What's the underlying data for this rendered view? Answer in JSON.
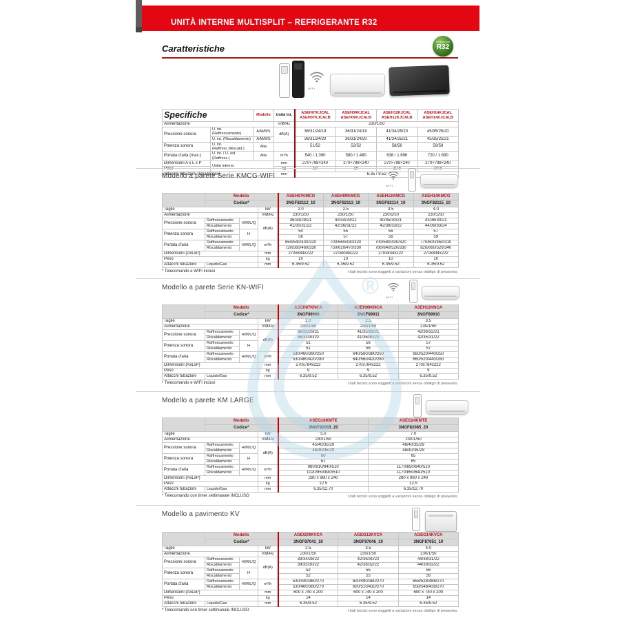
{
  "page": {
    "banner_title": "UNITÀ INTERNE MULTISPLIT – REFRIGERANTE R32",
    "section_heading": "Caratteristiche",
    "r32_badge": {
      "small": "refrigerante",
      "big": "R32"
    },
    "wifi_label": "WIFI",
    "watermark_symbol": "®",
    "colors": {
      "banner_red": "#e30613",
      "model_red": "#b5121b",
      "header_gray": "#d9d9d9",
      "watermark_blue": "#b5d5e8",
      "badge_green": "#2e6b1b"
    }
  },
  "labels": {
    "modello": "Modello",
    "codice": "Codice*",
    "taglie": "Taglie",
    "alimentazione": "Alimentazione",
    "pressione": "Pressione sonora",
    "potenza": "Potenza sonora",
    "portata": "Portata d'aria",
    "dimensioni": "Dimensioni (AxLxP)",
    "peso": "Peso",
    "attacchi": "Attacchi tubazioni",
    "raffrescamento": "Raffrescamento",
    "riscaldamento": "Riscaldamento",
    "liquido_gas": "Liquido/Gas",
    "hmlq": "H/M/L/Q",
    "h": "H",
    "kw": "kW",
    "vhz": "V/Ø/Hz",
    "dba": "dB(A)",
    "m3h": "m³/h",
    "mm": "mm",
    "kg": "kg"
  },
  "spec_table": {
    "title": "Specifiche",
    "modello_label": "Modello",
    "unita_label": "Unità Int.",
    "models": [
      "ASEH07KJCAL\nASEH07KJCALB",
      "ASEH09KJCAL\nASEH09KJCALB",
      "ASEH12KJCAL\nASEH12KJCALB",
      "ASEH14KJCAL\nASEH14KJCALB"
    ],
    "alimentazione_label": "Alimentazione",
    "alimentazione_unit": "V/Ø/Hz",
    "alimentazione_value": "230/1/50",
    "pressione_label": "Pressione sonora",
    "pressione_sub_raff": "U. int. (Raffrescamento)",
    "pressione_sub_risc": "U. int. (Riscaldamento)",
    "ambs": "A/M/B/S",
    "dba": "dB(A)",
    "pres_raff": [
      "36/31/24/19",
      "36/31/24/19",
      "41/34/25/20",
      "45/35/25/20"
    ],
    "pres_risc": [
      "36/31/24/20",
      "36/31/24/20",
      "41/34/25/21",
      "45/35/25/21"
    ],
    "potenza_label": "Potenza sonora",
    "potenza_sub": "U. int. (Raffresc./Riscald.)",
    "alta": "Alta",
    "potenza_values": [
      "51/52",
      "52/52",
      "58/56",
      "59/59"
    ],
    "portata_label": "Portata d'aria (max.)",
    "portata_sub": "U. int. / U. est. (Raffresc.)",
    "m3h": "m³/h",
    "portata_values": [
      "540 / 1.390",
      "580 / 1.480",
      "638 / 1.696",
      "720 / 1.690"
    ],
    "dimensioni_label": "Dimensioni  A x L x P",
    "peso_label": "Peso",
    "unita_interna": "Unità interna",
    "mm": "mm",
    "kg": "kg",
    "dimensioni_values": [
      "270×798×240",
      "270×798×240",
      "270×798×240",
      "270×798×240"
    ],
    "peso_values": [
      "10",
      "10",
      "10.5",
      "10.5"
    ],
    "attacchi_label": "Attacchi tubazioni (liquido/gas)",
    "attacchi_value": "6.35 / 9.52"
  },
  "kmcg": {
    "section_title": "Modello a parete Serie KMCG-WIFI",
    "models": [
      "ASEH07KMCG",
      "ASEH09KMCG",
      "ASEH12KMCG",
      "ASEH14KMCG"
    ],
    "codes": [
      "3NGF82112_10",
      "3NGF82113_10",
      "3NGF82114_10",
      "3NGF82115_10"
    ],
    "taglie": [
      "2.0",
      "2.5",
      "3.5",
      "4.0"
    ],
    "alimentazione": [
      "230/1/50",
      "230/1/50",
      "230/1/50",
      "230/1/50"
    ],
    "pres_raff": [
      "36/33/29/21",
      "40/34/29/21",
      "40/35/30/21",
      "43/36/30/21"
    ],
    "pres_risc": [
      "41/35/31/22",
      "42/36/31/22",
      "42/38/33/22",
      "44/39/33/24"
    ],
    "pot_raff": [
      "54",
      "55",
      "55",
      "57"
    ],
    "pot_risc": [
      "56",
      "57",
      "56",
      "59"
    ],
    "port_raff": [
      "650/540/430/320",
      "700/560/430/320",
      "700/580/430/320",
      "770/600/450/310"
    ],
    "port_risc": [
      "720/560/460/330",
      "750/610/470/330",
      "780/640/520/330",
      "820/660/520/340"
    ],
    "dimensioni": [
      "270x834x222",
      "270x834x222",
      "270x834x222",
      "270x834x222"
    ],
    "peso": [
      "10",
      "10",
      "10",
      "10"
    ],
    "attacchi": [
      "6.35/9.52",
      "6.35/9.52",
      "6.35/9.52",
      "6.35/9.52"
    ],
    "footnote": "* Telecomando e WIFI inclusi",
    "disclaimer": "I dati tecnici sono soggetti a variazioni senza obbligo di preavviso."
  },
  "kn": {
    "section_title": "Modello a parete Serie KN-WIFI",
    "models": [
      "ASEH07KNCA",
      "ASEH09KNCA",
      "ASEH12KNCA"
    ],
    "codes": [
      "3NGF89906",
      "3NGF89911",
      "3NGF89916"
    ],
    "taglie": [
      "2.0",
      "2.5",
      "3.5"
    ],
    "alimentazione": [
      "230/1/50",
      "230/1/50",
      "230/1/50"
    ],
    "pres_raff": [
      "36/33/29/21",
      "41/35/29/21",
      "42/36/32/21"
    ],
    "pres_risc": [
      "36/33/30/22",
      "41/36/30/22",
      "42/35/31/22"
    ],
    "pot_raff": [
      "51",
      "56",
      "57"
    ],
    "pot_risc": [
      "51",
      "56",
      "57"
    ],
    "port_raff": [
      "530/460/390/250",
      "640/560/380/250",
      "660/520/440/250"
    ],
    "port_risc": [
      "530/460/420/280",
      "640/560/420/280",
      "660/520/440/280"
    ],
    "dimensioni": [
      "270x784x222",
      "270x784x222",
      "270x784x222"
    ],
    "peso": [
      "9",
      "9",
      "9"
    ],
    "attacchi": [
      "6.35/9.52",
      "6.35/9.52",
      "6.35/9.52"
    ],
    "footnote": "* Telecomando e WIFI inclusi",
    "disclaimer": "I dati tecnici sono soggetti a variazioni senza obbligo di preavviso."
  },
  "km_large": {
    "section_title": "Modello a parete KM LARGE",
    "models": [
      "ASEG18KMTE",
      "ASEG24KMTE"
    ],
    "codes": [
      "3NGF82083_20",
      "3NGF82085_20"
    ],
    "taglie": [
      "5.0",
      "7.0"
    ],
    "alimentazione": [
      "230/1/50",
      "230/1/50"
    ],
    "pres_raff": [
      "45/40/35/29",
      "48/40/35/29"
    ],
    "pres_risc": [
      "46/40/35/29",
      "48/40/35/29"
    ],
    "pot_raff": [
      "60",
      "65"
    ],
    "pot_risc": [
      "61",
      "65"
    ],
    "port_raff": [
      "980/910/840/510",
      "1170/850/640/510"
    ],
    "port_risc": [
      "1020/950/840/510",
      "1170/850/640/510"
    ],
    "dimensioni": [
      "280 x 980 x 240",
      "280 x 980 x 240"
    ],
    "peso": [
      "12.5",
      "12.5"
    ],
    "attacchi": [
      "6.35/12.70",
      "6.35/12.70"
    ],
    "footnote": "* Telecomando con timer settimanale INCLUSO",
    "disclaimer": "I dati tecnici sono soggetti a variazioni senza obbligo di preavviso."
  },
  "kv": {
    "section_title": "Modello a pavimento KV",
    "models": [
      "AGEG09KVCA",
      "AGEG12KVCA",
      "AGEG14KVCA"
    ],
    "codes": [
      "3NGF87041_10",
      "3NGF87046_10",
      "3NGF87051_10"
    ],
    "taglie": [
      "2.5",
      "3.5",
      "4.0"
    ],
    "alimentazione": [
      "230/1/50",
      "230/1/50",
      "230/1/50"
    ],
    "pres_raff": [
      "39/34/28/22",
      "42/36/30/22",
      "44/38/31/22"
    ],
    "pres_risc": [
      "39/35/30/22",
      "42/38/32/22",
      "44/39/33/22"
    ],
    "pot_raff": [
      "52",
      "55",
      "56"
    ],
    "pot_risc": [
      "52",
      "55",
      "56"
    ],
    "port_raff": [
      "530/440/360/270",
      "600/490/380/270",
      "658/528/488/270"
    ],
    "port_risc": [
      "530/460/380/270",
      "600/510/410/270",
      "658/548/438/270"
    ],
    "dimensioni": [
      "600 x 740 x 200",
      "600 x 740 x 200",
      "600 x 740 x 200"
    ],
    "peso": [
      "14",
      "14",
      "14"
    ],
    "attacchi": [
      "6.35/9.52",
      "6.35/9.52",
      "6.35/9.52"
    ],
    "footnote": "* Telecomando con timer settimanale INCLUSO",
    "disclaimer": "I dati tecnici sono soggetti a variazioni senza obbligo di preavviso."
  }
}
